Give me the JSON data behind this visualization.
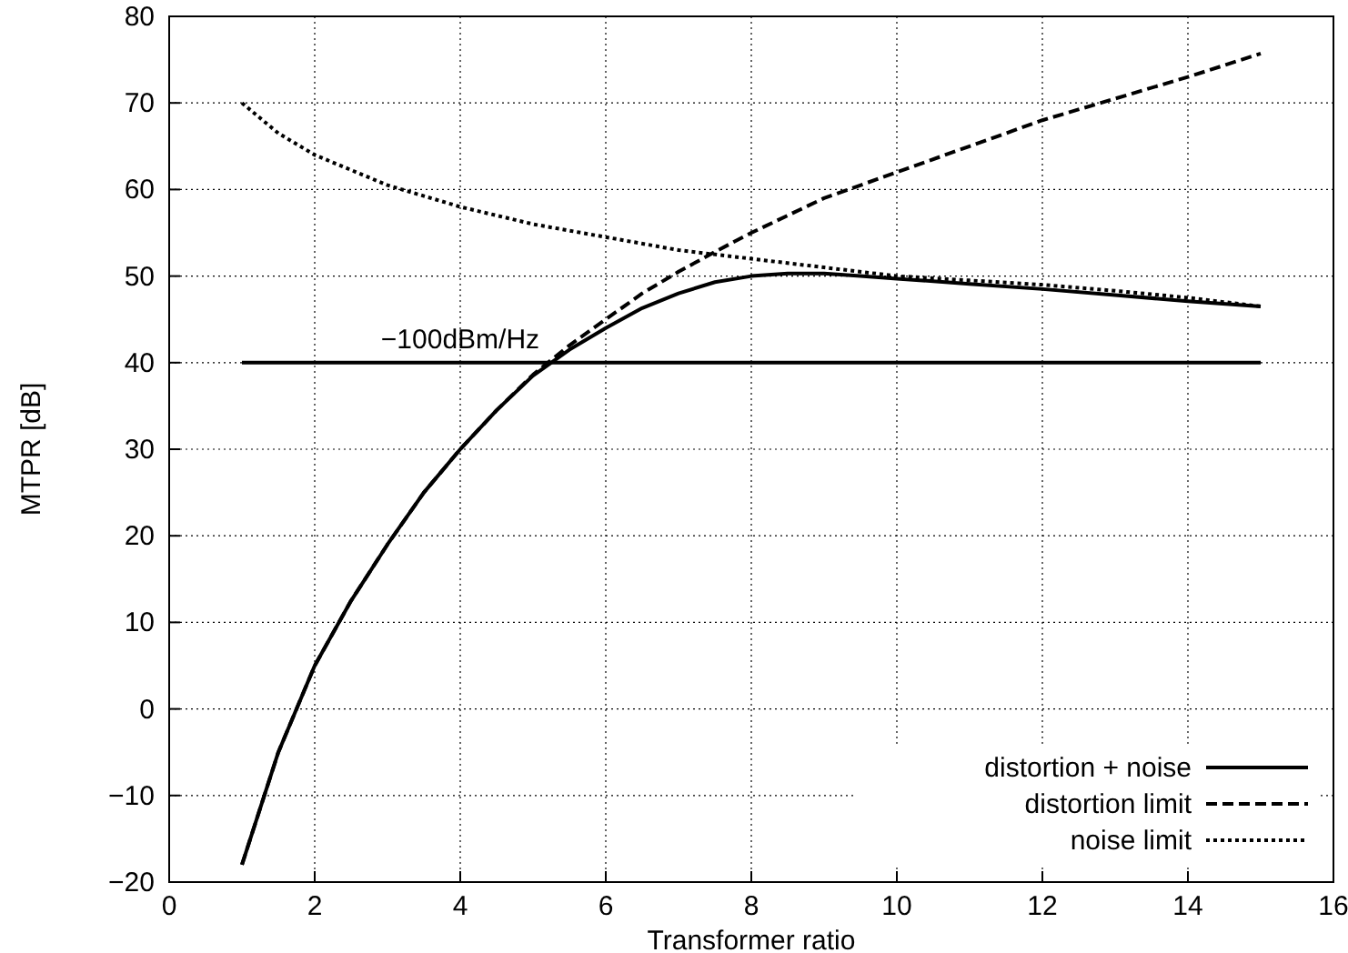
{
  "chart_data": {
    "type": "line",
    "xlabel": "Transformer ratio",
    "ylabel": "MTPR [dB]",
    "xlim": [
      0,
      16
    ],
    "xticks": [
      0,
      2,
      4,
      6,
      8,
      10,
      12,
      14,
      16
    ],
    "ylim": [
      -20,
      80
    ],
    "yticks": [
      -20,
      -10,
      0,
      10,
      20,
      30,
      40,
      50,
      60,
      70,
      80
    ],
    "grid": true,
    "legend": "bottom right",
    "series": [
      {
        "name": "distortion + noise",
        "color": "#000000",
        "line_style": "solid",
        "x": [
          1,
          1.5,
          2,
          2.5,
          3,
          3.5,
          4,
          4.5,
          5,
          5.5,
          6,
          6.5,
          7,
          7.5,
          8,
          8.5,
          9,
          9.5,
          10,
          11,
          12,
          13,
          14,
          15
        ],
        "values": [
          -18,
          -5,
          5,
          12.5,
          19,
          25,
          30,
          34.5,
          38.5,
          41.5,
          44,
          46.3,
          48,
          49.3,
          50,
          50.3,
          50.3,
          50,
          49.7,
          49.1,
          48.5,
          47.8,
          47.1,
          46.5
        ]
      },
      {
        "name": "distortion limit",
        "color": "#000000",
        "line_style": "dashed",
        "x": [
          1,
          1.5,
          2,
          2.5,
          3,
          3.5,
          4,
          4.5,
          5,
          5.5,
          6,
          6.5,
          7,
          7.5,
          8,
          9,
          10,
          11,
          12,
          13,
          14,
          15
        ],
        "values": [
          -18,
          -5,
          5,
          12.5,
          19,
          25,
          30,
          34.5,
          38.6,
          42,
          45,
          48,
          50.5,
          52.8,
          55,
          59,
          62,
          65,
          68,
          70.5,
          73,
          75.7
        ]
      },
      {
        "name": "noise limit",
        "color": "#000000",
        "line_style": "dotted",
        "x": [
          1,
          1.5,
          2,
          3,
          4,
          5,
          6,
          7,
          8,
          9,
          10,
          11,
          12,
          13,
          14,
          15
        ],
        "values": [
          70,
          66.5,
          64,
          60.5,
          58,
          56,
          54.5,
          53,
          52,
          51,
          50,
          49.5,
          49,
          48.3,
          47.5,
          46.5
        ]
      },
      {
        "color": "#000000",
        "line_style": "solid",
        "x": [
          1,
          15
        ],
        "values": [
          40,
          40
        ]
      }
    ],
    "annotations": [
      {
        "text": "−100dBm/Hz",
        "x": 4,
        "y": 40
      }
    ]
  }
}
